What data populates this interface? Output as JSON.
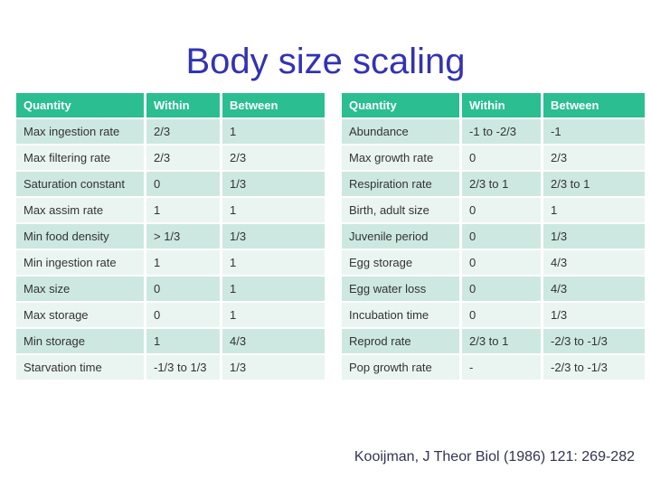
{
  "title": "Body size scaling",
  "citation": "Kooijman, J Theor Biol (1986) 121: 269-282",
  "colors": {
    "title": "#3333b3",
    "header_bg": "#2abe90",
    "header_text": "#ffffff",
    "row_odd": "#cde8e0",
    "row_even": "#eaf5f1",
    "cell_text": "#333333",
    "citation": "#333355"
  },
  "tables": [
    {
      "headers": [
        "Quantity",
        "Within",
        "Between"
      ],
      "rows": [
        [
          "Max ingestion rate",
          "2/3",
          "1"
        ],
        [
          "Max filtering rate",
          "2/3",
          "2/3"
        ],
        [
          "Saturation constant",
          "0",
          "1/3"
        ],
        [
          "Max assim rate",
          "1",
          "1"
        ],
        [
          "Min food density",
          "> 1/3",
          "1/3"
        ],
        [
          "Min ingestion rate",
          "1",
          "1"
        ],
        [
          "Max size",
          "0",
          "1"
        ],
        [
          "Max storage",
          "0",
          "1"
        ],
        [
          "Min storage",
          "1",
          "4/3"
        ],
        [
          "Starvation time",
          "-1/3 to 1/3",
          "1/3"
        ]
      ]
    },
    {
      "headers": [
        "Quantity",
        "Within",
        "Between"
      ],
      "rows": [
        [
          "Abundance",
          "-1 to -2/3",
          "-1"
        ],
        [
          "Max growth rate",
          "0",
          "2/3"
        ],
        [
          "Respiration rate",
          "2/3 to 1",
          "2/3 to 1"
        ],
        [
          "Birth, adult size",
          "0",
          "1"
        ],
        [
          "Juvenile period",
          "0",
          "1/3"
        ],
        [
          "Egg storage",
          "0",
          "4/3"
        ],
        [
          "Egg water loss",
          "0",
          "4/3"
        ],
        [
          "Incubation time",
          "0",
          "1/3"
        ],
        [
          "Reprod rate",
          "2/3 to 1",
          "-2/3 to -1/3"
        ],
        [
          "Pop growth rate",
          "-",
          "-2/3 to -1/3"
        ]
      ]
    }
  ]
}
